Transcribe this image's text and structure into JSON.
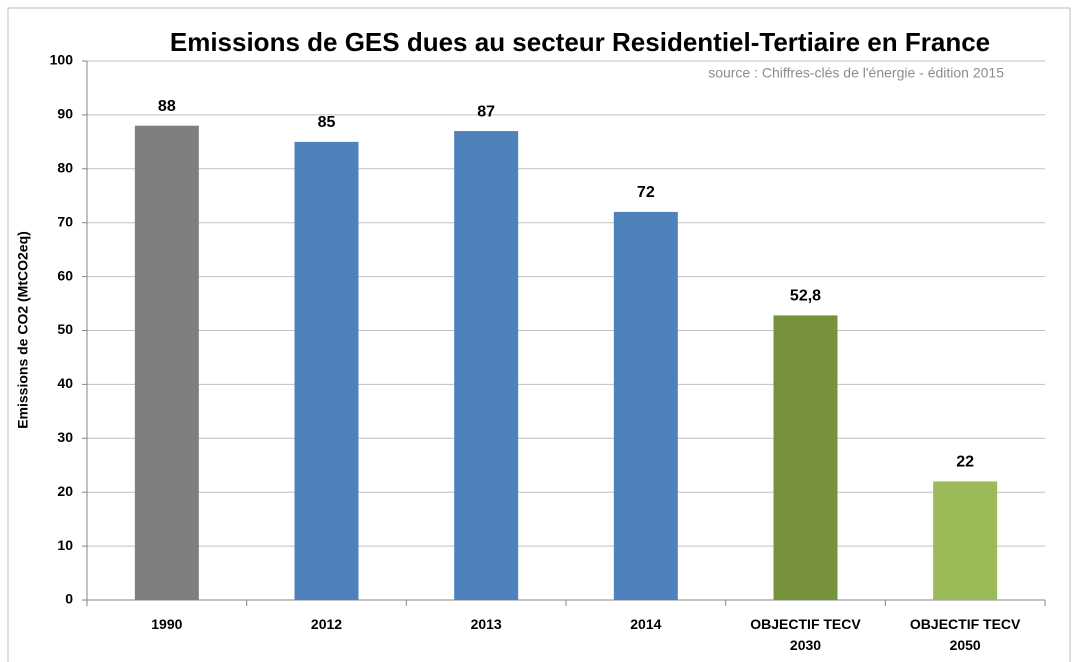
{
  "chart_data": {
    "type": "bar",
    "title": "Emissions de GES dues au secteur Residentiel-Tertiaire en France",
    "subtitle": "source : Chiffres-clés de l'énergie - édition 2015",
    "y_label": "Emissions de CO2  (MtCO2eq)",
    "categories": [
      "1990",
      "2012",
      "2013",
      "2014",
      "OBJECTIF TECV 2030",
      "OBJECTIF TECV 2050"
    ],
    "values": [
      88,
      85,
      87,
      72,
      52.8,
      22
    ],
    "value_labels": [
      "88",
      "85",
      "87",
      "72",
      "52,8",
      "22"
    ],
    "colors": [
      "#7f7f7f",
      "#4f81bd",
      "#4f81bd",
      "#4f81bd",
      "#76933c",
      "#9bbb59"
    ],
    "ylim": [
      0,
      100
    ],
    "yticks": [
      0,
      10,
      20,
      30,
      40,
      50,
      60,
      70,
      80,
      90,
      100
    ],
    "grid": true
  }
}
